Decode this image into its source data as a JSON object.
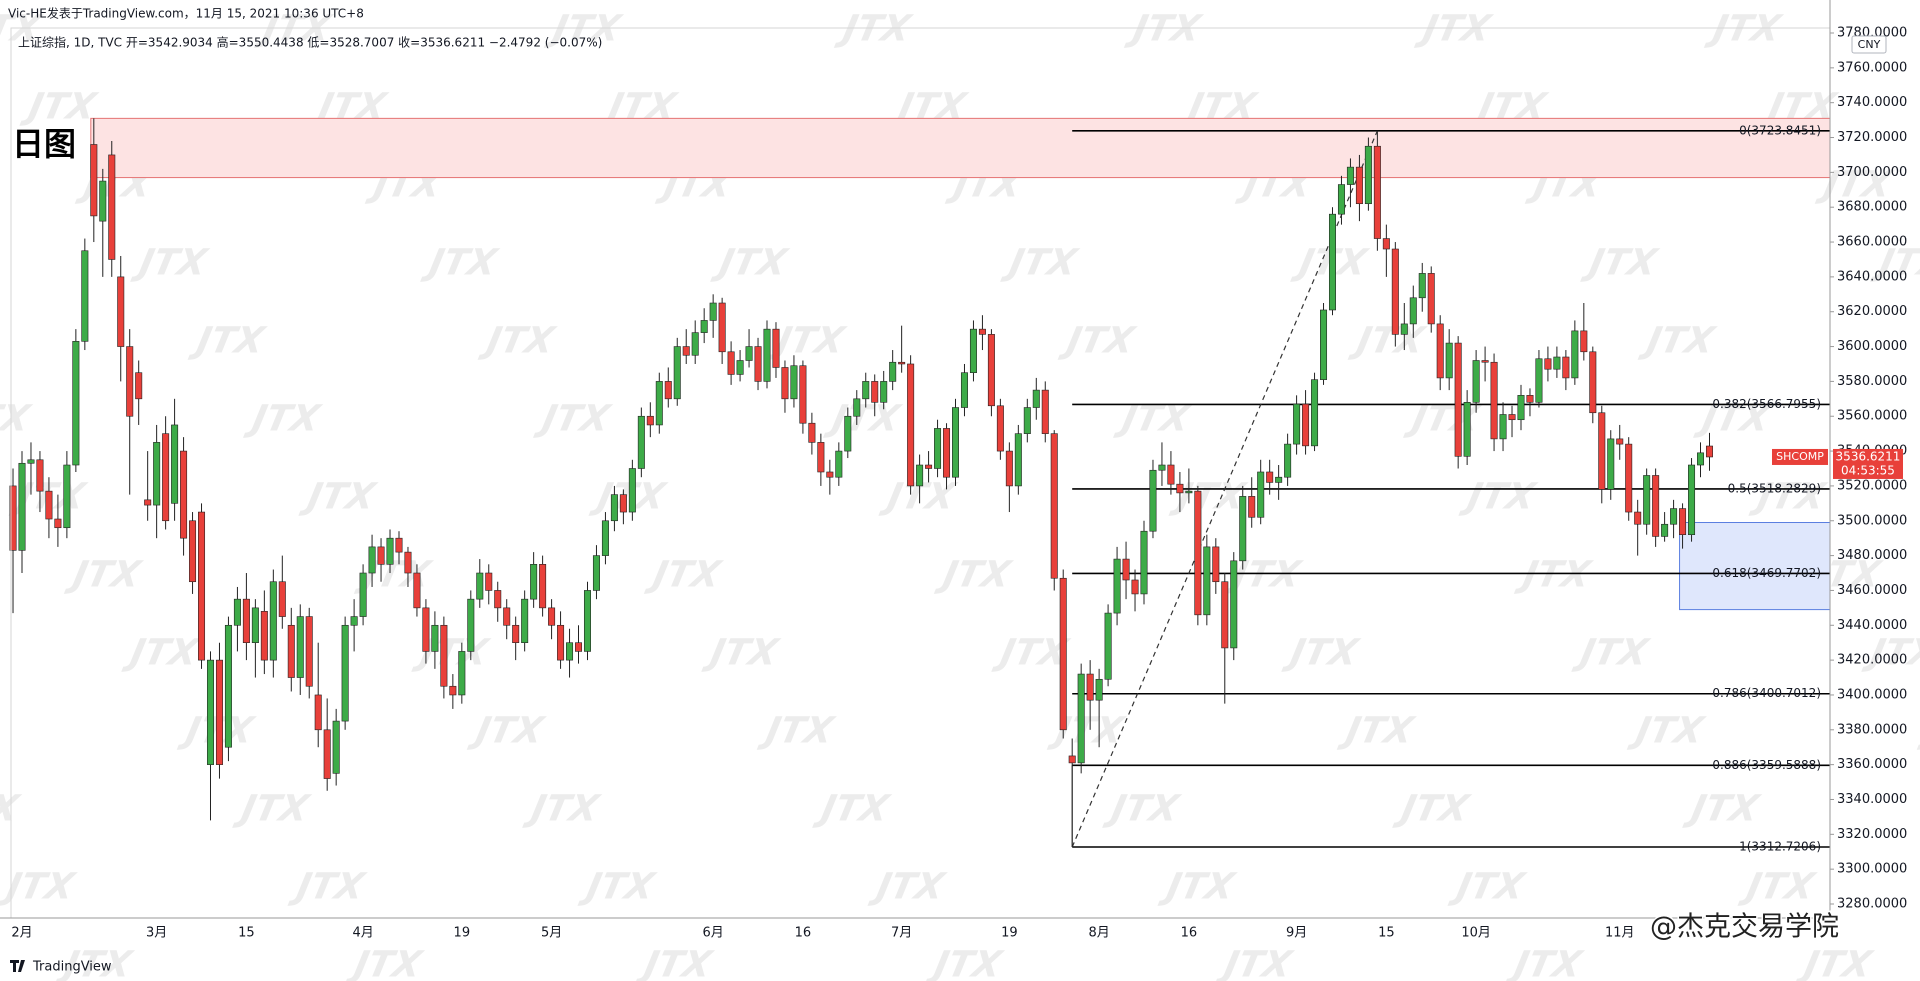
{
  "chart_data": {
    "type": "candlestick",
    "title": "Vic-HE发表于TradingView.com，11月 15, 2021 10:36 UTC+8",
    "subtitle": "上证综指, 1D, TVC  开=3542.9034  高=3550.4438  低=3528.7007  收=3536.6211  −2.4792 (−0.07%)",
    "annotation": "日图",
    "currency": "CNY",
    "symbol_tag": "SHCOMP",
    "countdown": "04:53:55",
    "brand": "TradingView",
    "watermark": "JTX",
    "credit": "@杰克交易学院",
    "up_color": "#3dab48",
    "down_color": "#e8403a",
    "wick_color": "#222222",
    "grid": false,
    "categories": [
      null,
      "2月",
      null,
      null,
      null,
      null,
      null,
      null,
      null,
      null,
      null,
      null,
      null,
      null,
      null,
      null,
      "3月",
      null,
      null,
      null,
      null,
      null,
      null,
      null,
      null,
      null,
      "15",
      null,
      null,
      null,
      null,
      null,
      null,
      null,
      null,
      null,
      null,
      null,
      null,
      "4月",
      null,
      null,
      null,
      null,
      null,
      null,
      null,
      null,
      null,
      null,
      "19",
      null,
      null,
      null,
      null,
      null,
      null,
      null,
      null,
      null,
      "5月",
      null,
      null,
      null,
      null,
      null,
      null,
      null,
      null,
      null,
      null,
      null,
      null,
      null,
      null,
      null,
      null,
      null,
      "6月",
      null,
      null,
      null,
      null,
      null,
      null,
      null,
      null,
      null,
      "16",
      null,
      null,
      null,
      null,
      null,
      null,
      null,
      null,
      null,
      null,
      "7月",
      null,
      null,
      null,
      null,
      null,
      null,
      null,
      null,
      null,
      null,
      null,
      "19",
      null,
      null,
      null,
      null,
      null,
      null,
      null,
      null,
      null,
      "8月",
      null,
      null,
      null,
      null,
      null,
      null,
      null,
      null,
      null,
      "16",
      null,
      null,
      null,
      null,
      null,
      null,
      null,
      null,
      null,
      null,
      null,
      "9月",
      null,
      null,
      null,
      null,
      null,
      null,
      null,
      null,
      null,
      "15",
      null,
      null,
      null,
      null,
      null,
      null,
      null,
      null,
      null,
      "10月",
      null,
      null,
      null,
      null,
      null,
      null,
      null,
      null,
      null,
      null,
      null,
      null,
      null,
      null,
      null,
      "11月",
      null,
      null,
      null,
      null,
      null,
      null,
      null,
      null,
      null,
      null
    ],
    "open": [
      3520,
      3483,
      3533,
      3535,
      3517,
      3501,
      3496,
      3532,
      3603,
      3716,
      3672,
      3710,
      3640,
      3600,
      3585,
      3512,
      3509,
      3550,
      3510,
      3540,
      3500,
      3505,
      3360,
      3420,
      3370,
      3440,
      3455,
      3430,
      3448,
      3420,
      3465,
      3440,
      3410,
      3445,
      3400,
      3380,
      3355,
      3385,
      3440,
      3445,
      3470,
      3485,
      3475,
      3490,
      3482,
      3470,
      3450,
      3425,
      3440,
      3405,
      3400,
      3425,
      3455,
      3470,
      3460,
      3450,
      3440,
      3430,
      3455,
      3475,
      3450,
      3440,
      3420,
      3430,
      3425,
      3460,
      3480,
      3500,
      3515,
      3505,
      3530,
      3560,
      3555,
      3580,
      3570,
      3600,
      3595,
      3608,
      3615,
      3625,
      3597,
      3584,
      3592,
      3600,
      3580,
      3610,
      3588,
      3570,
      3589,
      3556,
      3545,
      3528,
      3525,
      3540,
      3560,
      3570,
      3580,
      3568,
      3580,
      3591,
      3590,
      3520,
      3532,
      3530,
      3553,
      3525,
      3565,
      3585,
      3610,
      3607,
      3566,
      3540,
      3520,
      3550,
      3565,
      3575,
      3550,
      3467,
      3365,
      3361,
      3412,
      3397,
      3409,
      3447,
      3478,
      3466,
      3458,
      3494,
      3529,
      3532,
      3521,
      3516,
      3517,
      3446,
      3485,
      3465,
      3427,
      3477,
      3514,
      3502,
      3528,
      3522,
      3525,
      3544,
      3567,
      3543,
      3581,
      3621,
      3676,
      3693,
      3703,
      3682,
      3715,
      3662,
      3656,
      3607,
      3613,
      3628,
      3642,
      3613,
      3582,
      3602,
      3537,
      3568,
      3592,
      3591,
      3547,
      3561,
      3558,
      3572,
      3568,
      3593,
      3587,
      3594,
      3582,
      3609,
      3597,
      3562,
      3518,
      3547,
      3544,
      3505,
      3498,
      3526,
      3491,
      3498,
      3507,
      3492,
      3532,
      3542.9034
    ],
    "high": [
      3530,
      3540,
      3545,
      3540,
      3525,
      3515,
      3540,
      3610,
      3662,
      3731,
      3702,
      3718,
      3652,
      3610,
      3592,
      3540,
      3555,
      3560,
      3570,
      3548,
      3505,
      3510,
      3425,
      3430,
      3445,
      3462,
      3470,
      3455,
      3460,
      3472,
      3480,
      3450,
      3452,
      3450,
      3430,
      3398,
      3392,
      3445,
      3455,
      3475,
      3492,
      3490,
      3495,
      3494,
      3485,
      3475,
      3455,
      3448,
      3445,
      3412,
      3430,
      3460,
      3478,
      3475,
      3465,
      3455,
      3445,
      3460,
      3482,
      3480,
      3455,
      3448,
      3438,
      3440,
      3465,
      3486,
      3505,
      3520,
      3518,
      3535,
      3565,
      3568,
      3585,
      3588,
      3605,
      3610,
      3615,
      3622,
      3630,
      3628,
      3603,
      3598,
      3610,
      3605,
      3615,
      3614,
      3592,
      3595,
      3592,
      3562,
      3550,
      3535,
      3545,
      3565,
      3575,
      3585,
      3584,
      3586,
      3598,
      3612,
      3595,
      3538,
      3540,
      3558,
      3556,
      3570,
      3590,
      3615,
      3618,
      3610,
      3570,
      3545,
      3555,
      3570,
      3582,
      3580,
      3552,
      3472,
      3375,
      3418,
      3420,
      3415,
      3452,
      3485,
      3488,
      3472,
      3500,
      3535,
      3545,
      3540,
      3528,
      3530,
      3520,
      3492,
      3490,
      3470,
      3482,
      3520,
      3525,
      3535,
      3535,
      3532,
      3550,
      3572,
      3575,
      3585,
      3625,
      3680,
      3698,
      3708,
      3710,
      3720,
      3723.8451,
      3670,
      3660,
      3625,
      3635,
      3648,
      3646,
      3618,
      3610,
      3606,
      3575,
      3598,
      3600,
      3596,
      3568,
      3566,
      3578,
      3576,
      3598,
      3600,
      3600,
      3598,
      3615,
      3625,
      3600,
      3566,
      3552,
      3555,
      3548,
      3512,
      3530,
      3530,
      3505,
      3512,
      3510,
      3536,
      3545,
      3550.4438
    ],
    "low": [
      3447,
      3470,
      3515,
      3505,
      3490,
      3485,
      3490,
      3528,
      3598,
      3660,
      3640,
      3640,
      3580,
      3515,
      3555,
      3500,
      3490,
      3495,
      3500,
      3480,
      3458,
      3415,
      3328,
      3352,
      3362,
      3425,
      3420,
      3410,
      3412,
      3410,
      3438,
      3402,
      3400,
      3398,
      3370,
      3345,
      3348,
      3380,
      3425,
      3440,
      3462,
      3465,
      3470,
      3475,
      3462,
      3445,
      3418,
      3415,
      3398,
      3392,
      3395,
      3420,
      3450,
      3452,
      3442,
      3432,
      3420,
      3425,
      3450,
      3445,
      3432,
      3415,
      3410,
      3418,
      3420,
      3455,
      3475,
      3494,
      3498,
      3500,
      3525,
      3548,
      3550,
      3565,
      3566,
      3590,
      3590,
      3602,
      3605,
      3590,
      3578,
      3580,
      3588,
      3575,
      3576,
      3582,
      3562,
      3565,
      3550,
      3538,
      3520,
      3515,
      3520,
      3536,
      3555,
      3565,
      3560,
      3564,
      3575,
      3585,
      3515,
      3510,
      3522,
      3525,
      3518,
      3520,
      3560,
      3580,
      3598,
      3560,
      3535,
      3505,
      3515,
      3545,
      3558,
      3545,
      3460,
      3375,
      3312.7206,
      3355,
      3380,
      3370,
      3405,
      3440,
      3455,
      3448,
      3452,
      3490,
      3520,
      3515,
      3505,
      3510,
      3440,
      3440,
      3458,
      3395,
      3420,
      3472,
      3496,
      3498,
      3515,
      3512,
      3520,
      3538,
      3538,
      3540,
      3578,
      3618,
      3670,
      3680,
      3672,
      3678,
      3655,
      3640,
      3600,
      3598,
      3605,
      3620,
      3608,
      3575,
      3575,
      3530,
      3532,
      3562,
      3580,
      3540,
      3540,
      3548,
      3552,
      3560,
      3565,
      3580,
      3582,
      3575,
      3578,
      3592,
      3556,
      3510,
      3512,
      3535,
      3500,
      3480,
      3492,
      3485,
      3488,
      3490,
      3484,
      3488,
      3525,
      3528.7007
    ],
    "close": [
      3483,
      3533,
      3535,
      3517,
      3501,
      3496,
      3532,
      3603,
      3655,
      3675,
      3695,
      3650,
      3600,
      3560,
      3570,
      3509,
      3545,
      3500,
      3555,
      3490,
      3465,
      3420,
      3420,
      3360,
      3440,
      3455,
      3430,
      3450,
      3420,
      3465,
      3445,
      3410,
      3445,
      3405,
      3380,
      3352,
      3385,
      3440,
      3445,
      3470,
      3485,
      3475,
      3490,
      3482,
      3470,
      3450,
      3425,
      3440,
      3405,
      3400,
      3425,
      3455,
      3470,
      3460,
      3450,
      3440,
      3430,
      3455,
      3475,
      3450,
      3440,
      3420,
      3430,
      3425,
      3460,
      3480,
      3500,
      3515,
      3505,
      3530,
      3560,
      3555,
      3580,
      3570,
      3600,
      3595,
      3608,
      3615,
      3625,
      3597,
      3584,
      3592,
      3600,
      3580,
      3610,
      3588,
      3570,
      3589,
      3556,
      3545,
      3528,
      3525,
      3540,
      3560,
      3570,
      3580,
      3568,
      3580,
      3591,
      3590,
      3520,
      3532,
      3530,
      3553,
      3525,
      3565,
      3585,
      3610,
      3607,
      3566,
      3540,
      3520,
      3550,
      3565,
      3575,
      3550,
      3467,
      3380,
      3361,
      3412,
      3397,
      3409,
      3447,
      3478,
      3466,
      3458,
      3494,
      3529,
      3532,
      3521,
      3516,
      3517,
      3446,
      3485,
      3465,
      3427,
      3477,
      3514,
      3502,
      3528,
      3522,
      3525,
      3544,
      3567,
      3543,
      3581,
      3621,
      3676,
      3693,
      3703,
      3682,
      3715,
      3662,
      3656,
      3607,
      3613,
      3628,
      3642,
      3613,
      3582,
      3602,
      3537,
      3568,
      3592,
      3591,
      3547,
      3561,
      3558,
      3572,
      3568,
      3593,
      3587,
      3594,
      3582,
      3609,
      3597,
      3562,
      3518,
      3547,
      3544,
      3505,
      3498,
      3526,
      3491,
      3498,
      3507,
      3492,
      3532,
      3539,
      3536.6211
    ],
    "ylim": [
      3280,
      3780
    ],
    "yticks": [
      {
        "value": 3280,
        "label": "3280.0000"
      },
      {
        "value": 3300,
        "label": "3300.0000"
      },
      {
        "value": 3320,
        "label": "3320.0000"
      },
      {
        "value": 3340,
        "label": "3340.0000"
      },
      {
        "value": 3360,
        "label": "3360.0000"
      },
      {
        "value": 3380,
        "label": "3380.0000"
      },
      {
        "value": 3400,
        "label": "3400.0000"
      },
      {
        "value": 3420,
        "label": "3420.0000"
      },
      {
        "value": 3440,
        "label": "3440.0000"
      },
      {
        "value": 3460,
        "label": "3460.0000"
      },
      {
        "value": 3480,
        "label": "3480.0000"
      },
      {
        "value": 3500,
        "label": "3500.0000"
      },
      {
        "value": 3520,
        "label": "3520.0000"
      },
      {
        "value": 3540,
        "label": "3540.0000"
      },
      {
        "value": 3560,
        "label": "3560.0000"
      },
      {
        "value": 3580,
        "label": "3580.0000"
      },
      {
        "value": 3600,
        "label": "3600.0000"
      },
      {
        "value": 3620,
        "label": "3620.0000"
      },
      {
        "value": 3640,
        "label": "3640.0000"
      },
      {
        "value": 3660,
        "label": "3660.0000"
      },
      {
        "value": 3680,
        "label": "3680.0000"
      },
      {
        "value": 3700,
        "label": "3700.0000"
      },
      {
        "value": 3720,
        "label": "3720.0000"
      },
      {
        "value": 3740,
        "label": "3740.0000"
      },
      {
        "value": 3760,
        "label": "3760.0000"
      },
      {
        "value": 3780,
        "label": "3780.0000"
      }
    ],
    "fib_levels": [
      {
        "value": 3723.8451,
        "label": "0(3723.8451)"
      },
      {
        "value": 3566.7955,
        "label": "0.382(3566.7955)"
      },
      {
        "value": 3518.2829,
        "label": "0.5(3518.2829)"
      },
      {
        "value": 3469.7702,
        "label": "0.618(3469.7702)"
      },
      {
        "value": 3400.7012,
        "label": "0.786(3400.7012)"
      },
      {
        "value": 3359.5888,
        "label": "0.886(3359.5888)"
      },
      {
        "value": 3312.7206,
        "label": "1(3312.7206)"
      }
    ],
    "zones": [
      {
        "ylim": [
          3697,
          3731
        ],
        "color": "#fde3e3",
        "border": "#e57373"
      },
      {
        "ylim": [
          3449,
          3499
        ],
        "color": "#dfe7fc",
        "border": "#5b7fe0"
      }
    ]
  }
}
